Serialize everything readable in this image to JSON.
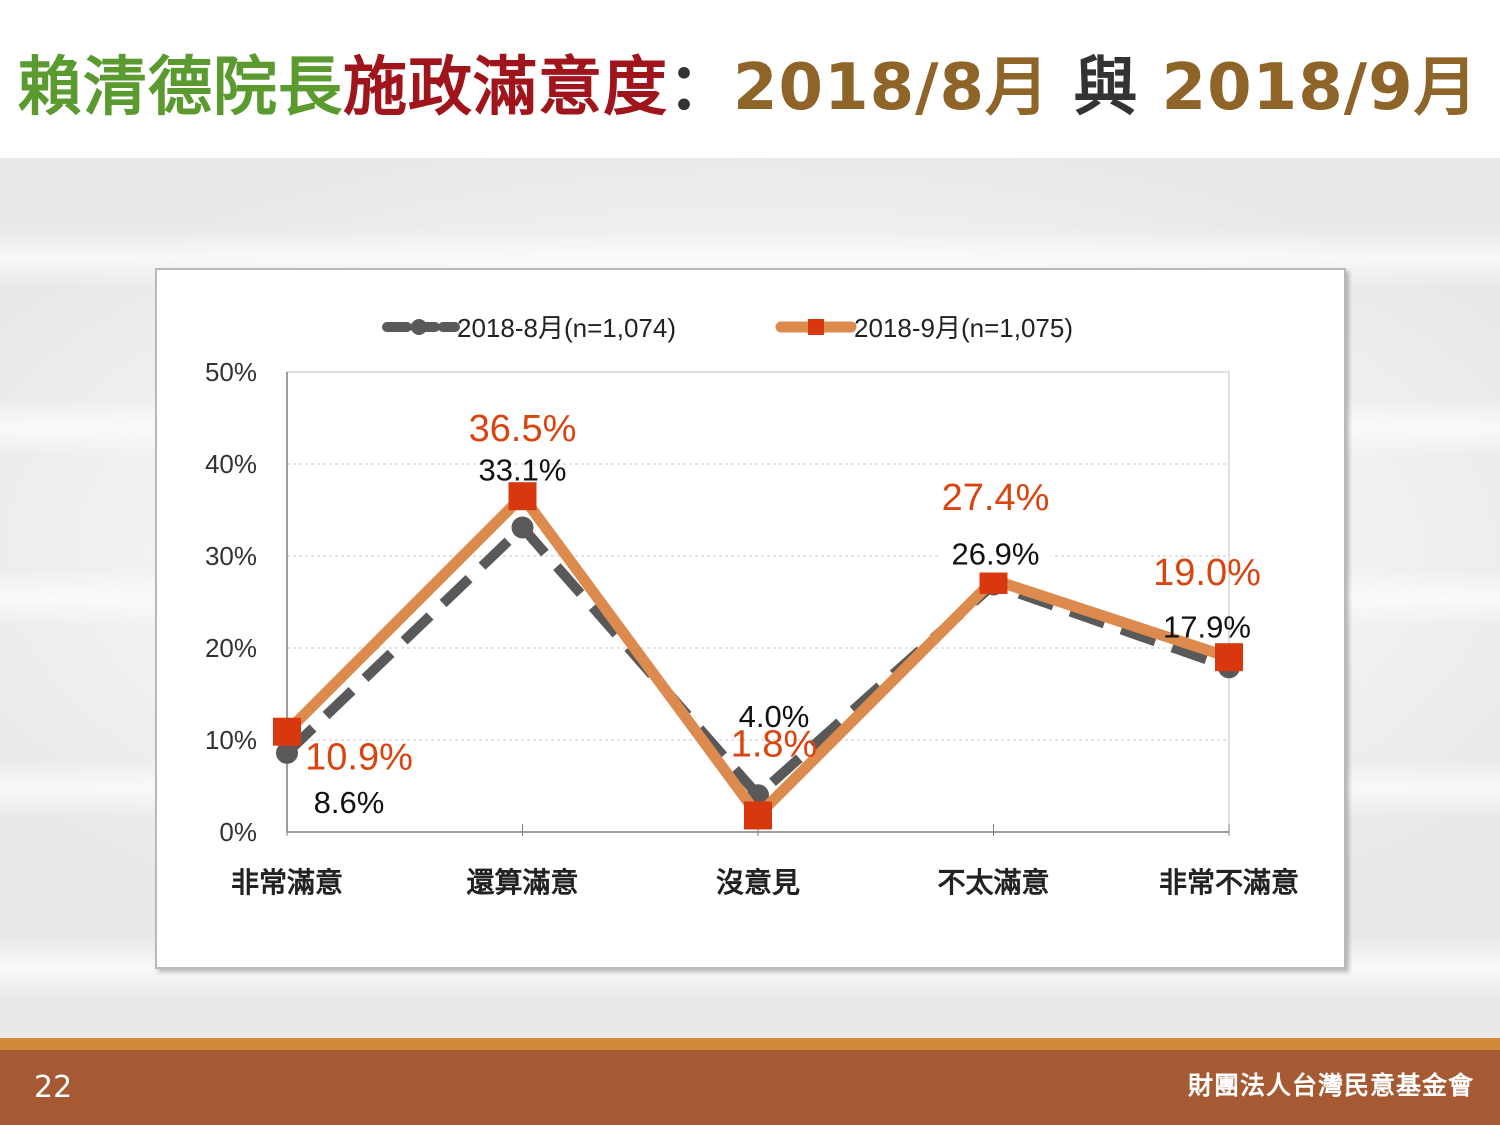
{
  "slide": {
    "title_parts": {
      "green": "賴清德院長",
      "red": "施政滿意度",
      "sep": "：",
      "brown1": "2018/8月",
      "mid": " 與 ",
      "brown2": "2018/9月"
    },
    "page_number": "22",
    "organization": "財團法人台灣民意基金會"
  },
  "colors": {
    "series_aug": "#595959",
    "series_sep_line": "#dd8a4f",
    "series_sep_marker": "#d9380f",
    "label_sep": "#d9440f",
    "label_aug": "#111111"
  },
  "chart_data": {
    "type": "line",
    "categories": [
      "非常滿意",
      "還算滿意",
      "沒意見",
      "不太滿意",
      "非常不滿意"
    ],
    "series": [
      {
        "name": "2018-8月(n=1,074)",
        "values": [
          8.6,
          33.1,
          4.0,
          26.9,
          17.9
        ],
        "labels": [
          "8.6%",
          "33.1%",
          "4.0%",
          "26.9%",
          "17.9%"
        ],
        "style": "dashed",
        "marker": "circle"
      },
      {
        "name": "2018-9月(n=1,075)",
        "values": [
          10.9,
          36.5,
          1.8,
          27.4,
          19.0
        ],
        "labels": [
          "10.9%",
          "36.5%",
          "1.8%",
          "27.4%",
          "19.0%"
        ],
        "style": "solid",
        "marker": "square"
      }
    ],
    "y_ticks": [
      "0%",
      "10%",
      "20%",
      "30%",
      "40%",
      "50%"
    ],
    "ylim": [
      0,
      50
    ],
    "grid": true,
    "legend_position": "top"
  }
}
